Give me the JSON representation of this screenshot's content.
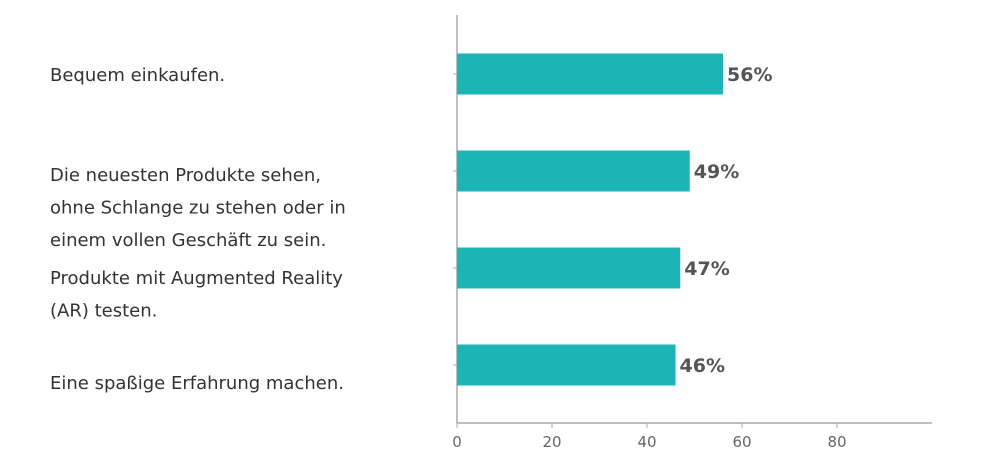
{
  "chart_data": {
    "type": "bar",
    "orientation": "horizontal",
    "categories": [
      [
        "Bequem einkaufen."
      ],
      [
        "Die neuesten Produkte sehen,",
        "ohne Schlange zu stehen oder in",
        "einem vollen Geschäft zu sein."
      ],
      [
        "Produkte mit Augmented Reality",
        "(AR) testen."
      ],
      [
        "Eine spaßige Erfahrung machen."
      ]
    ],
    "values": [
      56,
      49,
      47,
      46
    ],
    "data_labels": [
      "56%",
      "49%",
      "47%",
      "46%"
    ],
    "xlim": [
      0,
      100
    ],
    "xticks": [
      0,
      20,
      40,
      60,
      80
    ],
    "grid": false,
    "colors": {
      "bar": "#1cb5b5",
      "axis": "#aaaaaa"
    }
  }
}
